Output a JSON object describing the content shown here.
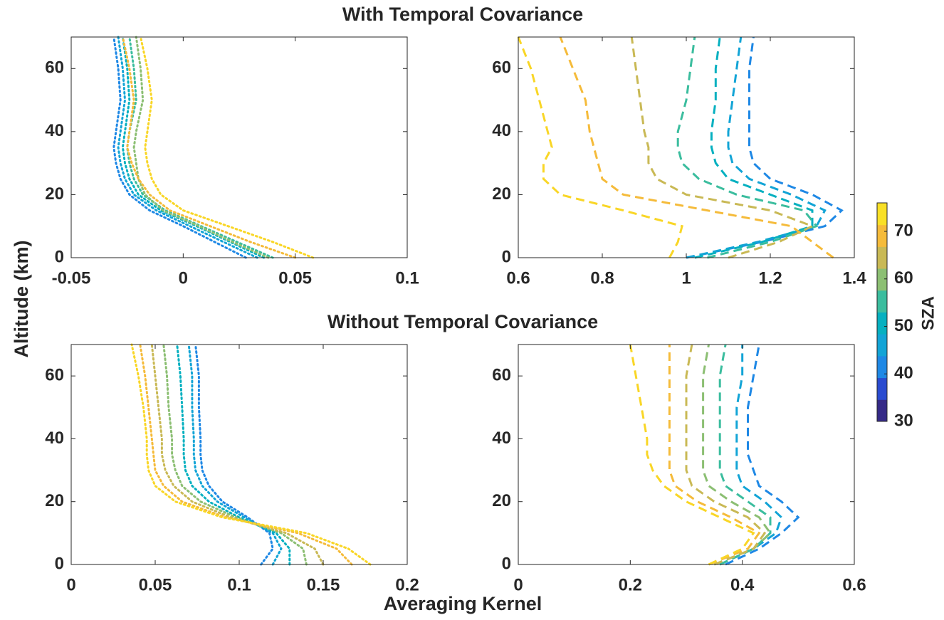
{
  "figure": {
    "ylabel": "Altitude (km)",
    "xlabel": "Averaging Kernel"
  },
  "chart_data": [
    {
      "type": "line",
      "title": "With Temporal Covariance",
      "linestyle": "dotted",
      "xlim": [
        -0.05,
        0.1
      ],
      "xticks": [
        -0.05,
        0,
        0.05,
        0.1
      ],
      "ylim": [
        0,
        70
      ],
      "yticks": [
        0,
        20,
        40,
        60
      ],
      "y": [
        0,
        5,
        10,
        15,
        20,
        25,
        30,
        35,
        40,
        50,
        60,
        70
      ],
      "series": [
        {
          "color": "#1e88e5",
          "values": [
            0.028,
            0.014,
            0.0,
            -0.015,
            -0.024,
            -0.028,
            -0.03,
            -0.031,
            -0.03,
            -0.028,
            -0.029,
            -0.031
          ]
        },
        {
          "color": "#12a4d6",
          "values": [
            0.033,
            0.018,
            0.003,
            -0.012,
            -0.022,
            -0.026,
            -0.028,
            -0.029,
            -0.028,
            -0.026,
            -0.027,
            -0.029
          ]
        },
        {
          "color": "#06b0c0",
          "values": [
            0.036,
            0.021,
            0.006,
            -0.01,
            -0.02,
            -0.024,
            -0.026,
            -0.027,
            -0.026,
            -0.024,
            -0.025,
            -0.027
          ]
        },
        {
          "color": "#3bbd9e",
          "values": [
            0.04,
            0.024,
            0.008,
            -0.008,
            -0.018,
            -0.022,
            -0.024,
            -0.025,
            -0.024,
            -0.021,
            -0.022,
            -0.024
          ]
        },
        {
          "color": "#8cbf73",
          "values": [
            0.038,
            0.022,
            0.007,
            -0.009,
            -0.017,
            -0.02,
            -0.021,
            -0.022,
            -0.021,
            -0.018,
            -0.019,
            -0.021
          ]
        },
        {
          "color": "#f5bb3a",
          "values": [
            0.05,
            0.03,
            0.012,
            -0.006,
            -0.015,
            -0.02,
            -0.023,
            -0.025,
            -0.024,
            -0.022,
            -0.024,
            -0.027
          ]
        },
        {
          "color": "#f9d626",
          "values": [
            0.058,
            0.04,
            0.02,
            0.0,
            -0.01,
            -0.014,
            -0.016,
            -0.017,
            -0.016,
            -0.014,
            -0.016,
            -0.019
          ]
        }
      ]
    },
    {
      "type": "line",
      "linestyle": "dashed",
      "xlim": [
        0.6,
        1.4
      ],
      "xticks": [
        0.6,
        0.8,
        1,
        1.2,
        1.4
      ],
      "ylim": [
        0,
        70
      ],
      "yticks": [
        0,
        20,
        40,
        60
      ],
      "y": [
        0,
        5,
        10,
        15,
        20,
        25,
        30,
        35,
        40,
        50,
        60,
        70
      ],
      "series": [
        {
          "color": "#1e88e5",
          "values": [
            1.0,
            1.18,
            1.33,
            1.37,
            1.3,
            1.2,
            1.16,
            1.15,
            1.15,
            1.15,
            1.15,
            1.16
          ]
        },
        {
          "color": "#12a4d6",
          "values": [
            1.0,
            1.17,
            1.31,
            1.33,
            1.25,
            1.15,
            1.11,
            1.1,
            1.1,
            1.11,
            1.12,
            1.13
          ]
        },
        {
          "color": "#06b0c0",
          "values": [
            1.02,
            1.18,
            1.3,
            1.3,
            1.2,
            1.1,
            1.07,
            1.06,
            1.06,
            1.07,
            1.07,
            1.08
          ]
        },
        {
          "color": "#3bbd9e",
          "values": [
            1.05,
            1.2,
            1.31,
            1.28,
            1.12,
            1.03,
            0.99,
            0.98,
            0.98,
            1.0,
            1.01,
            1.02
          ]
        },
        {
          "color": "#c9b955",
          "values": [
            1.1,
            1.22,
            1.3,
            1.2,
            1.0,
            0.93,
            0.91,
            0.91,
            0.9,
            0.89,
            0.88,
            0.87
          ]
        },
        {
          "color": "#f5bb3a",
          "values": [
            1.35,
            1.3,
            1.25,
            1.05,
            0.85,
            0.8,
            0.79,
            0.78,
            0.77,
            0.76,
            0.73,
            0.7
          ]
        },
        {
          "color": "#f9d626",
          "values": [
            0.96,
            0.98,
            0.99,
            0.85,
            0.7,
            0.66,
            0.66,
            0.68,
            0.67,
            0.65,
            0.63,
            0.6
          ]
        }
      ]
    },
    {
      "type": "line",
      "title": "Without Temporal Covariance",
      "linestyle": "dotted",
      "xlim": [
        0,
        0.2
      ],
      "xticks": [
        0,
        0.05,
        0.1,
        0.15,
        0.2
      ],
      "ylim": [
        0,
        70
      ],
      "yticks": [
        0,
        20,
        40,
        60
      ],
      "y": [
        0,
        5,
        10,
        15,
        20,
        25,
        30,
        35,
        40,
        50,
        60,
        70
      ],
      "series": [
        {
          "color": "#1e88e5",
          "values": [
            0.113,
            0.12,
            0.118,
            0.105,
            0.09,
            0.082,
            0.078,
            0.077,
            0.077,
            0.076,
            0.076,
            0.074
          ]
        },
        {
          "color": "#12a4d6",
          "values": [
            0.12,
            0.125,
            0.12,
            0.103,
            0.087,
            0.078,
            0.074,
            0.073,
            0.073,
            0.072,
            0.072,
            0.07
          ]
        },
        {
          "color": "#06b0c0",
          "values": [
            0.13,
            0.13,
            0.122,
            0.1,
            0.082,
            0.072,
            0.068,
            0.067,
            0.067,
            0.066,
            0.065,
            0.063
          ]
        },
        {
          "color": "#8cbf73",
          "values": [
            0.14,
            0.138,
            0.125,
            0.098,
            0.077,
            0.066,
            0.062,
            0.06,
            0.06,
            0.058,
            0.057,
            0.055
          ]
        },
        {
          "color": "#c9b955",
          "values": [
            0.15,
            0.145,
            0.128,
            0.095,
            0.072,
            0.061,
            0.056,
            0.054,
            0.054,
            0.052,
            0.05,
            0.048
          ]
        },
        {
          "color": "#f5bb3a",
          "values": [
            0.167,
            0.158,
            0.135,
            0.092,
            0.066,
            0.055,
            0.05,
            0.049,
            0.048,
            0.046,
            0.044,
            0.041
          ]
        },
        {
          "color": "#f9d626",
          "values": [
            0.178,
            0.165,
            0.14,
            0.09,
            0.062,
            0.05,
            0.046,
            0.045,
            0.045,
            0.043,
            0.04,
            0.036
          ]
        }
      ]
    },
    {
      "type": "line",
      "linestyle": "dashed",
      "xlim": [
        0,
        0.6
      ],
      "xticks": [
        0,
        0.2,
        0.4,
        0.6
      ],
      "ylim": [
        0,
        70
      ],
      "yticks": [
        0,
        20,
        40,
        60
      ],
      "y": [
        0,
        5,
        10,
        15,
        20,
        25,
        30,
        35,
        40,
        50,
        60,
        70
      ],
      "series": [
        {
          "color": "#1e88e5",
          "values": [
            0.37,
            0.43,
            0.47,
            0.5,
            0.47,
            0.43,
            0.42,
            0.41,
            0.41,
            0.41,
            0.42,
            0.43
          ]
        },
        {
          "color": "#12a4d6",
          "values": [
            0.36,
            0.42,
            0.46,
            0.47,
            0.44,
            0.4,
            0.39,
            0.39,
            0.39,
            0.39,
            0.4,
            0.4
          ]
        },
        {
          "color": "#3bbd9e",
          "values": [
            0.36,
            0.42,
            0.45,
            0.45,
            0.41,
            0.37,
            0.36,
            0.36,
            0.36,
            0.36,
            0.36,
            0.37
          ]
        },
        {
          "color": "#8cbf73",
          "values": [
            0.35,
            0.42,
            0.45,
            0.43,
            0.38,
            0.34,
            0.33,
            0.33,
            0.33,
            0.33,
            0.33,
            0.34
          ]
        },
        {
          "color": "#c9b955",
          "values": [
            0.35,
            0.42,
            0.44,
            0.41,
            0.35,
            0.31,
            0.3,
            0.3,
            0.3,
            0.3,
            0.3,
            0.31
          ]
        },
        {
          "color": "#f5bb3a",
          "values": [
            0.34,
            0.41,
            0.43,
            0.38,
            0.32,
            0.28,
            0.27,
            0.27,
            0.27,
            0.27,
            0.27,
            0.27
          ]
        },
        {
          "color": "#f9d626",
          "values": [
            0.34,
            0.4,
            0.42,
            0.36,
            0.3,
            0.26,
            0.24,
            0.23,
            0.23,
            0.22,
            0.21,
            0.2
          ]
        }
      ]
    },
    {
      "type": "colorbar",
      "label": "SZA",
      "clim": [
        30,
        76
      ],
      "ticks": [
        30,
        40,
        50,
        60,
        70
      ],
      "colors": [
        "#352a87",
        "#2a4bd0",
        "#1e88e5",
        "#12a4d6",
        "#06b0c0",
        "#3bbd9e",
        "#8cbf73",
        "#c9b955",
        "#f5bb3a",
        "#f9e026"
      ]
    }
  ]
}
